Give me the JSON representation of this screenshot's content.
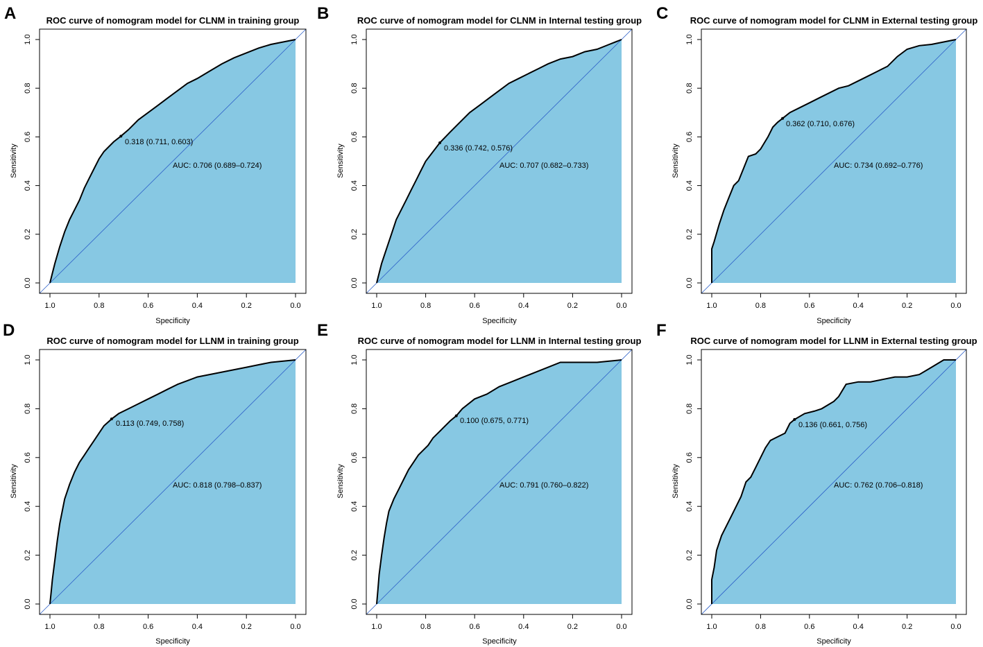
{
  "colors": {
    "fill": "#87c8e3",
    "curve": "#000000",
    "diagonal": "#2c5fc8",
    "frame": "#000000"
  },
  "chart_data": [
    {
      "panel": "A",
      "type": "line",
      "title": "ROC curve of nomogram model for CLNM in training group",
      "xlabel": "Specificity",
      "ylabel": "Sensitivity",
      "xlim": [
        1.0,
        0.0
      ],
      "ylim": [
        0.0,
        1.0
      ],
      "xticks": [
        "1.0",
        "0.8",
        "0.6",
        "0.4",
        "0.2",
        "0.0"
      ],
      "yticks": [
        "0.0",
        "0.2",
        "0.4",
        "0.6",
        "0.8",
        "1.0"
      ],
      "cutoff": {
        "specificity": 0.711,
        "sensitivity": 0.603,
        "label": "0.318 (0.711, 0.603)"
      },
      "auc_label": "AUC: 0.706 (0.689–0.724)",
      "specificity": [
        1.0,
        0.99,
        0.98,
        0.96,
        0.94,
        0.92,
        0.9,
        0.88,
        0.86,
        0.84,
        0.82,
        0.8,
        0.78,
        0.74,
        0.711,
        0.68,
        0.64,
        0.6,
        0.56,
        0.52,
        0.48,
        0.44,
        0.4,
        0.35,
        0.3,
        0.25,
        0.2,
        0.15,
        0.1,
        0.05,
        0.0
      ],
      "sensitivity": [
        0.0,
        0.04,
        0.08,
        0.15,
        0.21,
        0.26,
        0.3,
        0.34,
        0.39,
        0.43,
        0.47,
        0.51,
        0.54,
        0.58,
        0.603,
        0.63,
        0.67,
        0.7,
        0.73,
        0.76,
        0.79,
        0.82,
        0.84,
        0.87,
        0.9,
        0.925,
        0.945,
        0.965,
        0.98,
        0.99,
        1.0
      ]
    },
    {
      "panel": "B",
      "type": "line",
      "title": "ROC curve of nomogram model for CLNM in Internal testing group",
      "xlabel": "Specificity",
      "ylabel": "Sensitivity",
      "xlim": [
        1.0,
        0.0
      ],
      "ylim": [
        0.0,
        1.0
      ],
      "xticks": [
        "1.0",
        "0.8",
        "0.6",
        "0.4",
        "0.2",
        "0.0"
      ],
      "yticks": [
        "0.0",
        "0.2",
        "0.4",
        "0.6",
        "0.8",
        "1.0"
      ],
      "cutoff": {
        "specificity": 0.742,
        "sensitivity": 0.576,
        "label": "0.336 (0.742, 0.576)"
      },
      "auc_label": "AUC: 0.707 (0.682–0.733)",
      "specificity": [
        1.0,
        0.99,
        0.98,
        0.96,
        0.94,
        0.92,
        0.9,
        0.88,
        0.86,
        0.84,
        0.82,
        0.8,
        0.742,
        0.7,
        0.66,
        0.62,
        0.58,
        0.54,
        0.5,
        0.46,
        0.42,
        0.38,
        0.34,
        0.3,
        0.25,
        0.2,
        0.15,
        0.1,
        0.05,
        0.0
      ],
      "sensitivity": [
        0.0,
        0.04,
        0.08,
        0.14,
        0.2,
        0.26,
        0.3,
        0.34,
        0.38,
        0.42,
        0.46,
        0.5,
        0.576,
        0.62,
        0.66,
        0.7,
        0.73,
        0.76,
        0.79,
        0.82,
        0.84,
        0.86,
        0.88,
        0.9,
        0.92,
        0.93,
        0.95,
        0.96,
        0.98,
        1.0
      ]
    },
    {
      "panel": "C",
      "type": "line",
      "title": "ROC curve of nomogram model for CLNM in External testing group",
      "xlabel": "Specificity",
      "ylabel": "Sensitivity",
      "xlim": [
        1.0,
        0.0
      ],
      "ylim": [
        0.0,
        1.0
      ],
      "xticks": [
        "1.0",
        "0.8",
        "0.6",
        "0.4",
        "0.2",
        "0.0"
      ],
      "yticks": [
        "0.0",
        "0.2",
        "0.4",
        "0.6",
        "0.8",
        "1.0"
      ],
      "cutoff": {
        "specificity": 0.71,
        "sensitivity": 0.676,
        "label": "0.362 (0.710, 0.676)"
      },
      "auc_label": "AUC: 0.734 (0.692–0.776)",
      "specificity": [
        1.0,
        1.0,
        0.99,
        0.97,
        0.95,
        0.93,
        0.91,
        0.89,
        0.87,
        0.85,
        0.82,
        0.8,
        0.77,
        0.75,
        0.73,
        0.71,
        0.68,
        0.64,
        0.6,
        0.56,
        0.52,
        0.48,
        0.44,
        0.4,
        0.36,
        0.32,
        0.28,
        0.24,
        0.2,
        0.15,
        0.1,
        0.05,
        0.0
      ],
      "sensitivity": [
        0.0,
        0.14,
        0.17,
        0.24,
        0.3,
        0.35,
        0.4,
        0.42,
        0.47,
        0.52,
        0.53,
        0.55,
        0.6,
        0.64,
        0.66,
        0.676,
        0.7,
        0.72,
        0.74,
        0.76,
        0.78,
        0.8,
        0.81,
        0.83,
        0.85,
        0.87,
        0.89,
        0.93,
        0.96,
        0.975,
        0.98,
        0.99,
        1.0
      ]
    },
    {
      "panel": "D",
      "type": "line",
      "title": "ROC curve of nomogram model for LLNM in training group",
      "xlabel": "Specificity",
      "ylabel": "Sensitivity",
      "xlim": [
        1.0,
        0.0
      ],
      "ylim": [
        0.0,
        1.0
      ],
      "xticks": [
        "1.0",
        "0.8",
        "0.6",
        "0.4",
        "0.2",
        "0.0"
      ],
      "yticks": [
        "0.0",
        "0.2",
        "0.4",
        "0.6",
        "0.8",
        "1.0"
      ],
      "cutoff": {
        "specificity": 0.749,
        "sensitivity": 0.758,
        "label": "0.113 (0.749, 0.758)"
      },
      "auc_label": "AUC: 0.818 (0.798–0.837)",
      "specificity": [
        1.0,
        0.995,
        0.99,
        0.98,
        0.97,
        0.96,
        0.95,
        0.94,
        0.92,
        0.9,
        0.88,
        0.86,
        0.84,
        0.82,
        0.8,
        0.78,
        0.749,
        0.72,
        0.68,
        0.64,
        0.6,
        0.56,
        0.52,
        0.48,
        0.44,
        0.4,
        0.35,
        0.3,
        0.25,
        0.2,
        0.15,
        0.1,
        0.05,
        0.0
      ],
      "sensitivity": [
        0.0,
        0.05,
        0.1,
        0.18,
        0.26,
        0.33,
        0.38,
        0.43,
        0.49,
        0.54,
        0.58,
        0.61,
        0.64,
        0.67,
        0.7,
        0.73,
        0.758,
        0.78,
        0.8,
        0.82,
        0.84,
        0.86,
        0.88,
        0.9,
        0.915,
        0.93,
        0.94,
        0.95,
        0.96,
        0.97,
        0.98,
        0.99,
        0.995,
        1.0
      ]
    },
    {
      "panel": "E",
      "type": "line",
      "title": "ROC curve of nomogram model for LLNM in Internal testing group",
      "xlabel": "Specificity",
      "ylabel": "Sensitivity",
      "xlim": [
        1.0,
        0.0
      ],
      "ylim": [
        0.0,
        1.0
      ],
      "xticks": [
        "1.0",
        "0.8",
        "0.6",
        "0.4",
        "0.2",
        "0.0"
      ],
      "yticks": [
        "0.0",
        "0.2",
        "0.4",
        "0.6",
        "0.8",
        "1.0"
      ],
      "cutoff": {
        "specificity": 0.675,
        "sensitivity": 0.771,
        "label": "0.100 (0.675, 0.771)"
      },
      "auc_label": "AUC: 0.791 (0.760–0.822)",
      "specificity": [
        1.0,
        0.995,
        0.99,
        0.98,
        0.97,
        0.96,
        0.95,
        0.93,
        0.91,
        0.89,
        0.87,
        0.85,
        0.83,
        0.81,
        0.79,
        0.77,
        0.75,
        0.73,
        0.7,
        0.675,
        0.65,
        0.6,
        0.55,
        0.5,
        0.45,
        0.4,
        0.35,
        0.3,
        0.25,
        0.2,
        0.15,
        0.1,
        0.05,
        0.0
      ],
      "sensitivity": [
        0.0,
        0.06,
        0.12,
        0.2,
        0.27,
        0.33,
        0.38,
        0.43,
        0.47,
        0.51,
        0.55,
        0.58,
        0.61,
        0.63,
        0.65,
        0.68,
        0.7,
        0.72,
        0.75,
        0.771,
        0.8,
        0.84,
        0.86,
        0.89,
        0.91,
        0.93,
        0.95,
        0.97,
        0.99,
        0.99,
        0.99,
        0.99,
        0.995,
        1.0
      ]
    },
    {
      "panel": "F",
      "type": "line",
      "title": "ROC curve of nomogram model for LLNM in External testing group",
      "xlabel": "Specificity",
      "ylabel": "Sensitivity",
      "xlim": [
        1.0,
        0.0
      ],
      "ylim": [
        0.0,
        1.0
      ],
      "xticks": [
        "1.0",
        "0.8",
        "0.6",
        "0.4",
        "0.2",
        "0.0"
      ],
      "yticks": [
        "0.0",
        "0.2",
        "0.4",
        "0.6",
        "0.8",
        "1.0"
      ],
      "cutoff": {
        "specificity": 0.661,
        "sensitivity": 0.756,
        "label": "0.136 (0.661, 0.756)"
      },
      "auc_label": "AUC: 0.762 (0.706–0.818)",
      "specificity": [
        1.0,
        1.0,
        0.99,
        0.98,
        0.96,
        0.94,
        0.92,
        0.9,
        0.88,
        0.86,
        0.84,
        0.82,
        0.8,
        0.78,
        0.76,
        0.74,
        0.7,
        0.68,
        0.661,
        0.62,
        0.58,
        0.55,
        0.5,
        0.48,
        0.45,
        0.4,
        0.35,
        0.3,
        0.25,
        0.2,
        0.15,
        0.1,
        0.05,
        0.0
      ],
      "sensitivity": [
        0.0,
        0.1,
        0.15,
        0.22,
        0.28,
        0.32,
        0.36,
        0.4,
        0.44,
        0.5,
        0.52,
        0.56,
        0.6,
        0.64,
        0.67,
        0.68,
        0.7,
        0.74,
        0.756,
        0.78,
        0.79,
        0.8,
        0.83,
        0.85,
        0.9,
        0.91,
        0.91,
        0.92,
        0.93,
        0.93,
        0.94,
        0.97,
        1.0,
        1.0
      ]
    }
  ]
}
